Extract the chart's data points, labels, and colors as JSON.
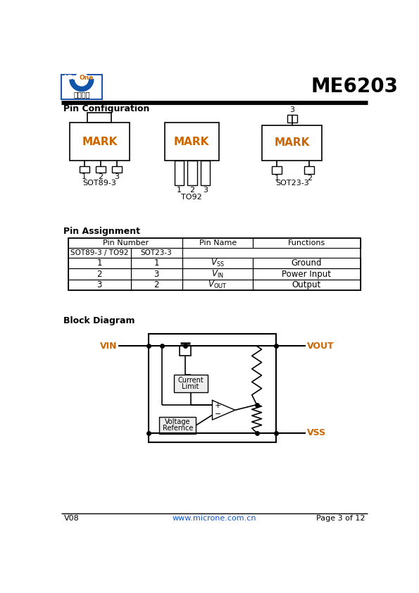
{
  "title": "ME6203",
  "logo_text2": "微盟电子",
  "section1": "Pin Configuration",
  "section2": "Pin Assignment",
  "section3": "Block Diagram",
  "pkg1_name": "SOT89-3",
  "pkg2_name": "TO92",
  "pkg3_name": "SOT23-3",
  "mark_color": "#cc6600",
  "table_header1": "Pin Number",
  "table_sub1": "SOT89-3 / TO92",
  "table_sub2": "SOT23-3",
  "table_col3": "Pin Name",
  "table_col4": "Functions",
  "table_rows": [
    [
      "1",
      "1",
      "SS",
      "Ground"
    ],
    [
      "2",
      "3",
      "IN",
      "Power Input"
    ],
    [
      "3",
      "2",
      "OUT",
      "Output"
    ]
  ],
  "vin_label": "VIN",
  "vout_label": "VOUT",
  "vss_label": "VSS",
  "cl_label1": "Current",
  "cl_label2": "Limit",
  "vref_label1": "Voltage",
  "vref_label2": "Refernce",
  "footer_version": "V08",
  "footer_url": "www.microne.com.cn",
  "footer_page": "Page 3 of 12",
  "bg_color": "#ffffff",
  "line_color": "#000000",
  "orange_color": "#cc6600"
}
